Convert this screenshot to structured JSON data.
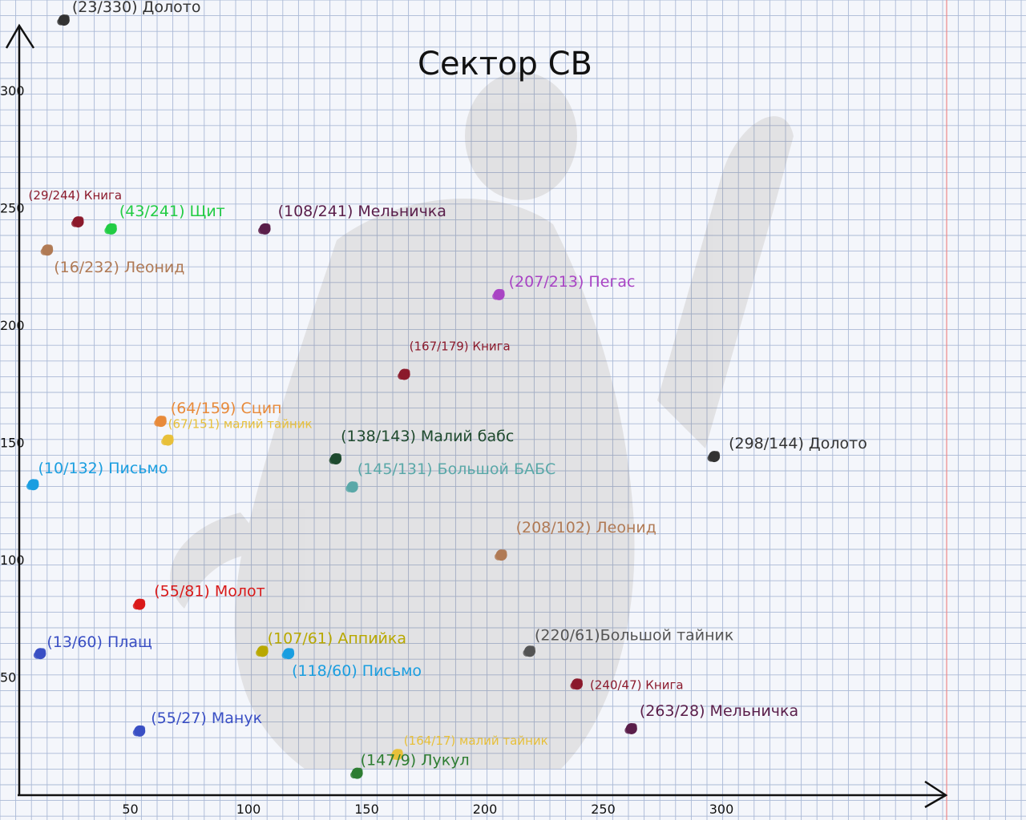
{
  "chart_data": {
    "type": "scatter",
    "title": "Сектор СВ",
    "xlabel": "",
    "ylabel": "",
    "grid": true,
    "xticks": [
      50,
      100,
      150,
      200,
      250,
      300
    ],
    "yticks": [
      50,
      100,
      150,
      200,
      250,
      300
    ],
    "points": [
      {
        "x": 23,
        "y": 330,
        "label": "(23/330) Долото",
        "color": "#333333"
      },
      {
        "x": 29,
        "y": 244,
        "label": "(29/244) Книга",
        "color": "#8b1a2c"
      },
      {
        "x": 43,
        "y": 241,
        "label": "(43/241) Щит",
        "color": "#22cc44"
      },
      {
        "x": 108,
        "y": 241,
        "label": "(108/241) Мельничка",
        "color": "#5a1e4a"
      },
      {
        "x": 16,
        "y": 232,
        "label": "(16/232) Леонид",
        "color": "#b07a55"
      },
      {
        "x": 207,
        "y": 213,
        "label": "(207/213) Пегас",
        "color": "#a944c4"
      },
      {
        "x": 167,
        "y": 179,
        "label": "(167/179) Книга",
        "color": "#8b1a2c"
      },
      {
        "x": 64,
        "y": 159,
        "label": "(64/159) Сцип",
        "color": "#e88a3a"
      },
      {
        "x": 67,
        "y": 151,
        "label": "(67/151) малий тайник",
        "color": "#e8c03a"
      },
      {
        "x": 138,
        "y": 143,
        "label": "(138/143) Малий бабс",
        "color": "#1f4a2e"
      },
      {
        "x": 298,
        "y": 144,
        "label": "(298/144) Долото",
        "color": "#333333"
      },
      {
        "x": 10,
        "y": 132,
        "label": "(10/132) Письмо",
        "color": "#1a9ee0"
      },
      {
        "x": 145,
        "y": 131,
        "label": "(145/131) Большой БАБС",
        "color": "#5aa8a8"
      },
      {
        "x": 208,
        "y": 102,
        "label": "(208/102) Леонид",
        "color": "#b07a55"
      },
      {
        "x": 55,
        "y": 81,
        "label": "(55/81) Молот",
        "color": "#d91a1a"
      },
      {
        "x": 107,
        "y": 61,
        "label": "(107/61) Аппийка",
        "color": "#b8a800"
      },
      {
        "x": 13,
        "y": 60,
        "label": "(13/60) Плащ",
        "color": "#3a4fc4"
      },
      {
        "x": 118,
        "y": 60,
        "label": "(118/60) Письмо",
        "color": "#1a9ee0"
      },
      {
        "x": 220,
        "y": 61,
        "label": "(220/61)Большой тайник",
        "color": "#555555"
      },
      {
        "x": 240,
        "y": 47,
        "label": "(240/47) Книга",
        "color": "#8b1a2c"
      },
      {
        "x": 263,
        "y": 28,
        "label": "(263/28) Мельничка",
        "color": "#5a1e4a"
      },
      {
        "x": 55,
        "y": 27,
        "label": "(55/27) Манук",
        "color": "#3a4fc4"
      },
      {
        "x": 164,
        "y": 17,
        "label": "(164/17) малий тайник",
        "color": "#e8c03a"
      },
      {
        "x": 147,
        "y": 9,
        "label": "(147/9) Лукул",
        "color": "#2e7d32"
      }
    ]
  }
}
